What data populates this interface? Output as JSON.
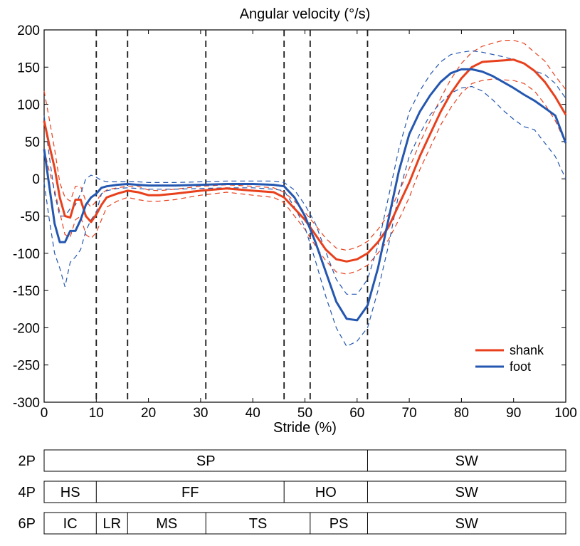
{
  "chart_data": {
    "type": "line",
    "title": "Angular velocity (°/s)",
    "xlabel": "Stride (%)",
    "ylabel": "",
    "xlim": [
      0,
      100
    ],
    "ylim": [
      -300,
      200
    ],
    "xticks": [
      0,
      10,
      20,
      30,
      40,
      50,
      60,
      70,
      80,
      90,
      100
    ],
    "yticks": [
      200,
      150,
      100,
      50,
      0,
      -50,
      -100,
      -150,
      -200,
      -250,
      -300
    ],
    "legend": {
      "position": "lower-right",
      "entries": [
        "shank",
        "foot"
      ]
    },
    "colors": {
      "shank": "#e8401c",
      "foot": "#2457b0",
      "dividers": "#1a1a1a"
    },
    "event_lines_x": [
      10,
      16,
      31,
      46,
      51,
      62
    ],
    "series": [
      {
        "name": "shank",
        "x": [
          0,
          1,
          2,
          3,
          4,
          5,
          6,
          7,
          8,
          9,
          10,
          11,
          12,
          14,
          16,
          18,
          20,
          22,
          25,
          30,
          35,
          40,
          44,
          46,
          48,
          50,
          52,
          54,
          56,
          58,
          60,
          62,
          64,
          66,
          68,
          70,
          72,
          74,
          76,
          78,
          80,
          82,
          84,
          86,
          88,
          90,
          92,
          94,
          96,
          98,
          100
        ],
        "values": [
          78,
          45,
          15,
          -25,
          -50,
          -52,
          -28,
          -28,
          -50,
          -58,
          -48,
          -35,
          -25,
          -20,
          -16,
          -18,
          -22,
          -22,
          -20,
          -16,
          -13,
          -16,
          -18,
          -25,
          -40,
          -55,
          -75,
          -95,
          -108,
          -111,
          -108,
          -100,
          -85,
          -65,
          -35,
          -5,
          30,
          60,
          90,
          115,
          135,
          150,
          157,
          158,
          159,
          160,
          155,
          145,
          130,
          110,
          86
        ],
        "upper": [
          118,
          80,
          40,
          -5,
          -25,
          -30,
          -10,
          -10,
          -30,
          -38,
          -30,
          -20,
          -15,
          -12,
          -10,
          -10,
          -15,
          -16,
          -14,
          -10,
          -8,
          -10,
          -12,
          -18,
          -30,
          -45,
          -62,
          -80,
          -93,
          -96,
          -92,
          -84,
          -68,
          -48,
          -18,
          14,
          48,
          78,
          108,
          134,
          155,
          170,
          178,
          182,
          186,
          186,
          182,
          170,
          158,
          138,
          120
        ],
        "lower": [
          40,
          10,
          -15,
          -45,
          -75,
          -78,
          -55,
          -50,
          -75,
          -80,
          -72,
          -55,
          -38,
          -30,
          -25,
          -28,
          -30,
          -30,
          -28,
          -22,
          -18,
          -22,
          -25,
          -32,
          -50,
          -68,
          -90,
          -110,
          -125,
          -128,
          -124,
          -116,
          -100,
          -82,
          -55,
          -25,
          12,
          42,
          72,
          96,
          115,
          128,
          132,
          134,
          133,
          132,
          128,
          118,
          100,
          78,
          48
        ]
      },
      {
        "name": "foot",
        "x": [
          0,
          1,
          2,
          3,
          4,
          5,
          6,
          7,
          8,
          9,
          10,
          11,
          12,
          14,
          16,
          18,
          20,
          25,
          30,
          35,
          40,
          44,
          46,
          48,
          50,
          52,
          54,
          56,
          58,
          60,
          62,
          64,
          66,
          68,
          70,
          72,
          74,
          76,
          78,
          80,
          82,
          84,
          86,
          88,
          90,
          92,
          94,
          96,
          98,
          100
        ],
        "values": [
          40,
          -10,
          -60,
          -85,
          -85,
          -70,
          -70,
          -55,
          -35,
          -25,
          -20,
          -12,
          -10,
          -8,
          -7,
          -8,
          -9,
          -9,
          -8,
          -7,
          -7,
          -8,
          -10,
          -25,
          -50,
          -85,
          -125,
          -165,
          -188,
          -190,
          -170,
          -120,
          -55,
          10,
          60,
          90,
          112,
          130,
          142,
          147,
          147,
          144,
          138,
          130,
          122,
          113,
          105,
          95,
          85,
          48
        ],
        "upper": [
          85,
          30,
          -20,
          -50,
          -50,
          -40,
          -35,
          -20,
          0,
          5,
          2,
          -2,
          -4,
          -4,
          -4,
          -4,
          -5,
          -5,
          -4,
          -3,
          -3,
          -3,
          -5,
          -15,
          -35,
          -60,
          -98,
          -135,
          -155,
          -155,
          -135,
          -90,
          -25,
          40,
          90,
          118,
          140,
          157,
          167,
          170,
          172,
          170,
          167,
          164,
          160,
          155,
          145,
          140,
          128,
          108
        ],
        "lower": [
          -5,
          -55,
          -100,
          -120,
          -145,
          -112,
          -105,
          -95,
          -70,
          -55,
          -45,
          -20,
          -16,
          -13,
          -12,
          -13,
          -14,
          -14,
          -13,
          -12,
          -12,
          -14,
          -16,
          -38,
          -65,
          -110,
          -158,
          -200,
          -225,
          -218,
          -200,
          -150,
          -90,
          -20,
          30,
          60,
          86,
          102,
          115,
          122,
          124,
          118,
          106,
          92,
          80,
          70,
          66,
          48,
          30,
          0
        ]
      }
    ]
  },
  "phase_bars": [
    {
      "label": "2P",
      "segments": [
        {
          "text": "SP",
          "start": 0,
          "end": 62
        },
        {
          "text": "SW",
          "start": 62,
          "end": 100
        }
      ]
    },
    {
      "label": "4P",
      "segments": [
        {
          "text": "HS",
          "start": 0,
          "end": 10
        },
        {
          "text": "FF",
          "start": 10,
          "end": 46
        },
        {
          "text": "HO",
          "start": 46,
          "end": 62
        },
        {
          "text": "SW",
          "start": 62,
          "end": 100
        }
      ]
    },
    {
      "label": "6P",
      "segments": [
        {
          "text": "IC",
          "start": 0,
          "end": 10
        },
        {
          "text": "LR",
          "start": 10,
          "end": 16
        },
        {
          "text": "MS",
          "start": 16,
          "end": 31
        },
        {
          "text": "TS",
          "start": 31,
          "end": 51
        },
        {
          "text": "PS",
          "start": 51,
          "end": 62
        },
        {
          "text": "SW",
          "start": 62,
          "end": 100
        }
      ]
    }
  ]
}
